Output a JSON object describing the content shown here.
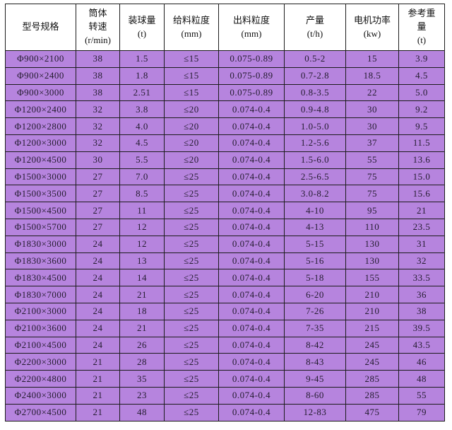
{
  "colors": {
    "cell_bg": "#b684de",
    "header_bg": "#ffffff",
    "border": "#1c1c1c",
    "text": "#241c30"
  },
  "table": {
    "columns": [
      {
        "id": "model",
        "lines": [
          "型号规格"
        ]
      },
      {
        "id": "speed",
        "lines": [
          "筒体",
          "转速",
          "(r/min)"
        ]
      },
      {
        "id": "ball-load",
        "lines": [
          "装球量",
          "(t)"
        ]
      },
      {
        "id": "feed-size",
        "lines": [
          "给料粒度",
          "(mm)"
        ]
      },
      {
        "id": "discharge-size",
        "lines": [
          "出料粒度",
          "(mm)"
        ]
      },
      {
        "id": "capacity",
        "lines": [
          "产量",
          "(t/h)"
        ]
      },
      {
        "id": "motor-power",
        "lines": [
          "电机功率",
          "(kw)"
        ]
      },
      {
        "id": "ref-weight",
        "lines": [
          "参考重",
          "量",
          "(t)"
        ]
      }
    ],
    "rows": [
      [
        "Φ900×2100",
        "38",
        "1.5",
        "≤15",
        "0.075-0.89",
        "0.5-2",
        "15",
        "3.9"
      ],
      [
        "Φ900×2400",
        "38",
        "1.8",
        "≤15",
        "0.075-0.89",
        "0.7-2.8",
        "18.5",
        "4.5"
      ],
      [
        "Φ900×3000",
        "38",
        "2.51",
        "≤15",
        "0.075-0.89",
        "0.8-3.5",
        "22",
        "5.0"
      ],
      [
        "Φ1200×2400",
        "32",
        "3.8",
        "≤20",
        "0.074-0.4",
        "0.9-4.8",
        "30",
        "9.2"
      ],
      [
        "Φ1200×2800",
        "32",
        "4.0",
        "≤20",
        "0.074-0.4",
        "1.0-5.0",
        "30",
        "9.5"
      ],
      [
        "Φ1200×3000",
        "32",
        "4.5",
        "≤20",
        "0.074-0.4",
        "1.2-5.6",
        "37",
        "11.5"
      ],
      [
        "Φ1200×4500",
        "30",
        "5.5",
        "≤20",
        "0.074-0.4",
        "1.5-6.0",
        "55",
        "13.6"
      ],
      [
        "Φ1500×3000",
        "27",
        "7.0",
        "≤25",
        "0.074-0.4",
        "2.5-6.5",
        "75",
        "15.0"
      ],
      [
        "Φ1500×3500",
        "27",
        "8.5",
        "≤25",
        "0.074-0.4",
        "3.0-8.2",
        "75",
        "15.6"
      ],
      [
        "Φ1500×4500",
        "27",
        "11",
        "≤25",
        "0.074-0.4",
        "4-10",
        "95",
        "21"
      ],
      [
        "Φ1500×5700",
        "27",
        "12",
        "≤25",
        "0.074-0.4",
        "4-13",
        "110",
        "23.5"
      ],
      [
        "Φ1830×3000",
        "24",
        "12",
        "≤25",
        "0.074-0.4",
        "5-15",
        "130",
        "31"
      ],
      [
        "Φ1830×3600",
        "24",
        "13",
        "≤25",
        "0.074-0.4",
        "5-16",
        "130",
        "32"
      ],
      [
        "Φ1830×4500",
        "24",
        "14",
        "≤25",
        "0.074-0.4",
        "5-18",
        "155",
        "33.5"
      ],
      [
        "Φ1830×7000",
        "24",
        "21",
        "≤25",
        "0.074-0.4",
        "6-20",
        "210",
        "36"
      ],
      [
        "Φ2100×3000",
        "24",
        "18",
        "≤25",
        "0.074-0.4",
        "7-26",
        "210",
        "38"
      ],
      [
        "Φ2100×3600",
        "24",
        "21",
        "≤25",
        "0.074-0.4",
        "7-35",
        "215",
        "39.5"
      ],
      [
        "Φ2100×4500",
        "24",
        "26",
        "≤25",
        "0.074-0.4",
        "8-42",
        "245",
        "43.5"
      ],
      [
        "Φ2200×3000",
        "21",
        "28",
        "≤25",
        "0.074-0.4",
        "8-43",
        "245",
        "46"
      ],
      [
        "Φ2200×4800",
        "21",
        "35",
        "≤25",
        "0.074-0.4",
        "9-45",
        "285",
        "48"
      ],
      [
        "Φ2400×3000",
        "21",
        "23",
        "≤25",
        "0.074-0.4",
        "8-60",
        "285",
        "55"
      ],
      [
        "Φ2700×4500",
        "21",
        "48",
        "≤25",
        "0.074-0.4",
        "12-83",
        "475",
        "79"
      ]
    ]
  }
}
